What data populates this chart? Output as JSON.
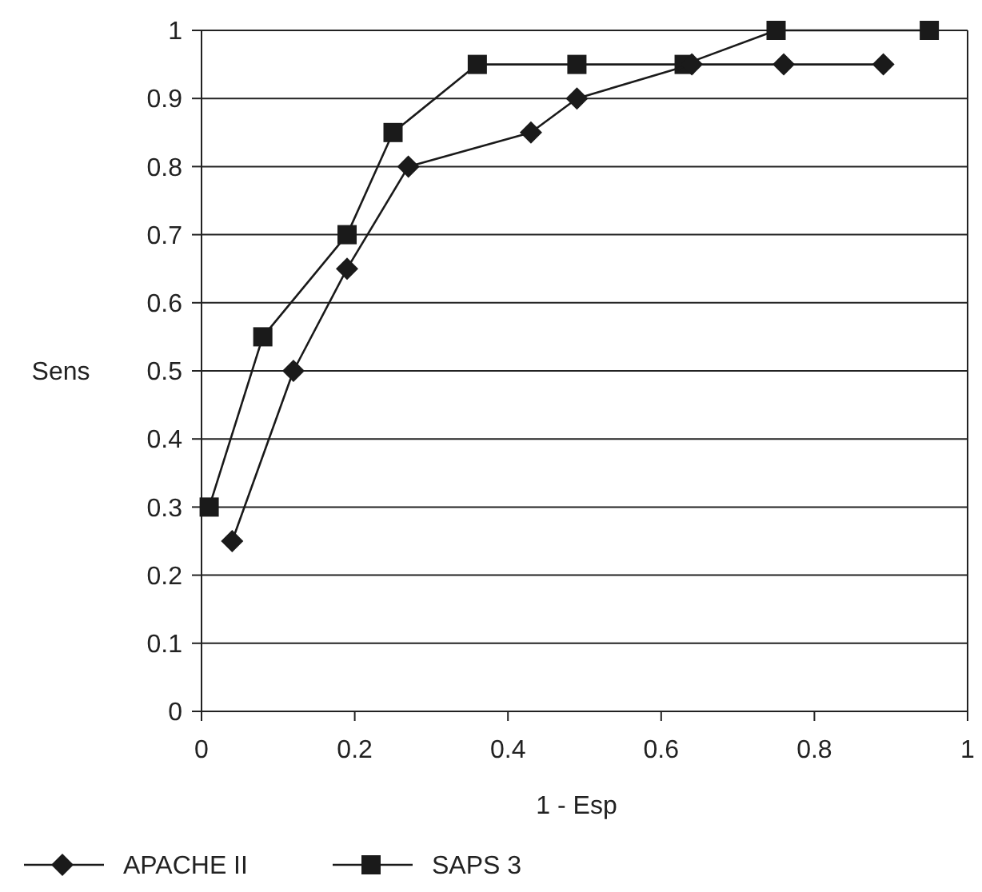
{
  "chart_data": {
    "type": "line",
    "xlabel": "1 -  Esp",
    "ylabel": "Sens",
    "xlim": [
      0,
      1
    ],
    "xticks": [
      0,
      0.2,
      0.4,
      0.6,
      0.8,
      1
    ],
    "ylim": [
      0,
      1
    ],
    "yticks": [
      0,
      0.1,
      0.2,
      0.3,
      0.4,
      0.5,
      0.6,
      0.7,
      0.8,
      0.9,
      1
    ],
    "grid": "y",
    "legend": "bottom",
    "series": [
      {
        "name": "APACHE II",
        "color": "#1a1a1a",
        "marker": "diamond",
        "x": [
          0.04,
          0.12,
          0.19,
          0.27,
          0.43,
          0.49,
          0.64,
          0.76,
          0.89
        ],
        "values": [
          0.25,
          0.5,
          0.65,
          0.8,
          0.85,
          0.9,
          0.95,
          0.95,
          0.95
        ]
      },
      {
        "name": "SAPS 3",
        "color": "#1a1a1a",
        "marker": "square",
        "x": [
          0.01,
          0.08,
          0.19,
          0.25,
          0.36,
          0.49,
          0.63,
          0.75,
          0.95
        ],
        "values": [
          0.3,
          0.55,
          0.7,
          0.85,
          0.95,
          0.95,
          0.95,
          1,
          1
        ]
      }
    ]
  }
}
